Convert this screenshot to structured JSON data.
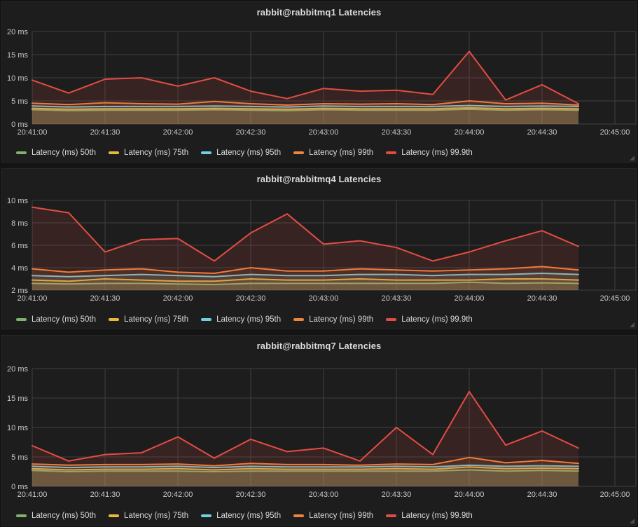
{
  "app": {
    "name": "Grafana dashboard",
    "theme_page_bg": "#141414",
    "theme_panel_bg": "#1e1d1d"
  },
  "colors": {
    "p50": "#7EB26D",
    "p75": "#EAB839",
    "p95": "#6ED0E0",
    "p99": "#EF843C",
    "p999": "#E24D42",
    "grid": "#3d4043",
    "axis_text": "#c8c8c8",
    "title_text": "#d8d9da"
  },
  "chart_data": [
    {
      "type": "area-line",
      "title": "rabbit@rabbitmq1 Latencies",
      "xlabel": "",
      "ylabel": "",
      "grid": true,
      "legend_position": "bottom",
      "x_tick_labels": [
        "20:41:00",
        "20:41:30",
        "20:42:00",
        "20:42:30",
        "20:43:00",
        "20:43:30",
        "20:44:00",
        "20:44:30",
        "20:45:00"
      ],
      "x_tick_seconds": [
        0,
        30,
        60,
        90,
        120,
        150,
        180,
        210,
        240
      ],
      "x_offsets_sec": [
        0,
        15,
        30,
        45,
        60,
        75,
        90,
        105,
        120,
        135,
        150,
        165,
        180,
        195,
        210,
        225
      ],
      "ylim": [
        0,
        20
      ],
      "y_tick_values": [
        0,
        5,
        10,
        15,
        20
      ],
      "y_tick_labels": [
        "0 ms",
        "5 ms",
        "10 ms",
        "15 ms",
        "20 ms"
      ],
      "series": [
        {
          "name": "Latency (ms) 50th",
          "color": "#7EB26D",
          "values": [
            3.1,
            2.9,
            3.0,
            3.0,
            3.0,
            3.1,
            3.0,
            2.9,
            3.1,
            3.0,
            3.0,
            3.0,
            3.2,
            3.0,
            3.1,
            3.0
          ]
        },
        {
          "name": "Latency (ms) 75th",
          "color": "#EAB839",
          "values": [
            3.4,
            3.2,
            3.3,
            3.3,
            3.3,
            3.4,
            3.3,
            3.2,
            3.4,
            3.3,
            3.3,
            3.3,
            3.5,
            3.3,
            3.4,
            3.3
          ]
        },
        {
          "name": "Latency (ms) 95th",
          "color": "#6ED0E0",
          "values": [
            3.9,
            3.7,
            3.8,
            3.8,
            3.8,
            3.9,
            3.8,
            3.7,
            3.9,
            3.8,
            3.8,
            3.8,
            4.0,
            3.8,
            3.9,
            3.8
          ]
        },
        {
          "name": "Latency (ms) 99th",
          "color": "#EF843C",
          "values": [
            4.5,
            4.2,
            4.6,
            4.4,
            4.3,
            4.9,
            4.4,
            4.1,
            4.4,
            4.3,
            4.4,
            4.2,
            5.0,
            4.4,
            4.5,
            4.1
          ]
        },
        {
          "name": "Latency (ms) 99.9th",
          "color": "#E24D42",
          "values": [
            9.5,
            6.7,
            9.7,
            10.0,
            8.2,
            10.0,
            7.1,
            5.5,
            7.7,
            7.1,
            7.3,
            6.4,
            15.7,
            5.2,
            8.5,
            4.4
          ]
        }
      ]
    },
    {
      "type": "area-line",
      "title": "rabbit@rabbitmq4 Latencies",
      "xlabel": "",
      "ylabel": "",
      "grid": true,
      "legend_position": "bottom",
      "x_tick_labels": [
        "20:41:00",
        "20:41:30",
        "20:42:00",
        "20:42:30",
        "20:43:00",
        "20:43:30",
        "20:44:00",
        "20:44:30",
        "20:45:00"
      ],
      "x_tick_seconds": [
        0,
        30,
        60,
        90,
        120,
        150,
        180,
        210,
        240
      ],
      "x_offsets_sec": [
        0,
        15,
        30,
        45,
        60,
        75,
        90,
        105,
        120,
        135,
        150,
        165,
        180,
        195,
        210,
        225
      ],
      "ylim": [
        2,
        10
      ],
      "y_tick_values": [
        2,
        4,
        6,
        8,
        10
      ],
      "y_tick_labels": [
        "2 ms",
        "4 ms",
        "6 ms",
        "8 ms",
        "10 ms"
      ],
      "series": [
        {
          "name": "Latency (ms) 50th",
          "color": "#7EB26D",
          "values": [
            2.6,
            2.55,
            2.6,
            2.6,
            2.55,
            2.5,
            2.6,
            2.6,
            2.6,
            2.6,
            2.6,
            2.6,
            2.7,
            2.6,
            2.65,
            2.6
          ]
        },
        {
          "name": "Latency (ms) 75th",
          "color": "#EAB839",
          "values": [
            2.9,
            2.8,
            3.0,
            2.9,
            2.8,
            2.8,
            3.0,
            2.9,
            2.9,
            3.0,
            2.9,
            2.9,
            2.9,
            3.0,
            3.0,
            2.9
          ]
        },
        {
          "name": "Latency (ms) 95th",
          "color": "#6ED0E0",
          "values": [
            3.3,
            3.2,
            3.3,
            3.4,
            3.3,
            3.2,
            3.4,
            3.3,
            3.3,
            3.4,
            3.4,
            3.3,
            3.4,
            3.4,
            3.5,
            3.4
          ]
        },
        {
          "name": "Latency (ms) 99th",
          "color": "#EF843C",
          "values": [
            3.9,
            3.6,
            3.8,
            3.9,
            3.6,
            3.5,
            4.0,
            3.7,
            3.7,
            3.9,
            3.8,
            3.7,
            3.8,
            3.9,
            4.1,
            3.8
          ]
        },
        {
          "name": "Latency (ms) 99.9th",
          "color": "#E24D42",
          "values": [
            9.4,
            8.9,
            5.4,
            6.5,
            6.6,
            4.6,
            7.1,
            8.8,
            6.1,
            6.4,
            5.8,
            4.6,
            5.4,
            6.4,
            7.3,
            5.9
          ]
        }
      ]
    },
    {
      "type": "area-line",
      "title": "rabbit@rabbitmq7 Latencies",
      "xlabel": "",
      "ylabel": "",
      "grid": true,
      "legend_position": "bottom",
      "x_tick_labels": [
        "20:41:00",
        "20:41:30",
        "20:42:00",
        "20:42:30",
        "20:43:00",
        "20:43:30",
        "20:44:00",
        "20:44:30",
        "20:45:00"
      ],
      "x_tick_seconds": [
        0,
        30,
        60,
        90,
        120,
        150,
        180,
        210,
        240
      ],
      "x_offsets_sec": [
        0,
        15,
        30,
        45,
        60,
        75,
        90,
        105,
        120,
        135,
        150,
        165,
        180,
        195,
        210,
        225
      ],
      "ylim": [
        0,
        20
      ],
      "y_tick_values": [
        0,
        5,
        10,
        15,
        20
      ],
      "y_tick_labels": [
        "0 ms",
        "5 ms",
        "10 ms",
        "15 ms",
        "20 ms"
      ],
      "series": [
        {
          "name": "Latency (ms) 50th",
          "color": "#7EB26D",
          "values": [
            2.7,
            2.5,
            2.6,
            2.6,
            2.6,
            2.5,
            2.6,
            2.6,
            2.6,
            2.6,
            2.6,
            2.6,
            2.8,
            2.6,
            2.7,
            2.6
          ]
        },
        {
          "name": "Latency (ms) 75th",
          "color": "#EAB839",
          "values": [
            3.0,
            2.8,
            2.9,
            2.9,
            3.0,
            2.8,
            3.0,
            2.9,
            2.9,
            2.9,
            3.0,
            2.9,
            3.3,
            3.0,
            3.1,
            3.0
          ]
        },
        {
          "name": "Latency (ms) 95th",
          "color": "#6ED0E0",
          "values": [
            3.4,
            3.2,
            3.3,
            3.3,
            3.4,
            3.2,
            3.4,
            3.3,
            3.3,
            3.3,
            3.4,
            3.3,
            3.6,
            3.4,
            3.5,
            3.4
          ]
        },
        {
          "name": "Latency (ms) 99th",
          "color": "#EF843C",
          "values": [
            3.8,
            3.6,
            3.7,
            3.7,
            3.8,
            3.5,
            3.9,
            3.7,
            3.7,
            3.6,
            3.8,
            3.7,
            4.9,
            4.0,
            4.4,
            3.9
          ]
        },
        {
          "name": "Latency (ms) 99.9th",
          "color": "#E24D42",
          "values": [
            6.9,
            4.3,
            5.4,
            5.7,
            8.4,
            4.8,
            8.0,
            5.9,
            6.5,
            4.3,
            10.0,
            5.4,
            16.1,
            7.0,
            9.4,
            6.5
          ]
        }
      ]
    }
  ]
}
